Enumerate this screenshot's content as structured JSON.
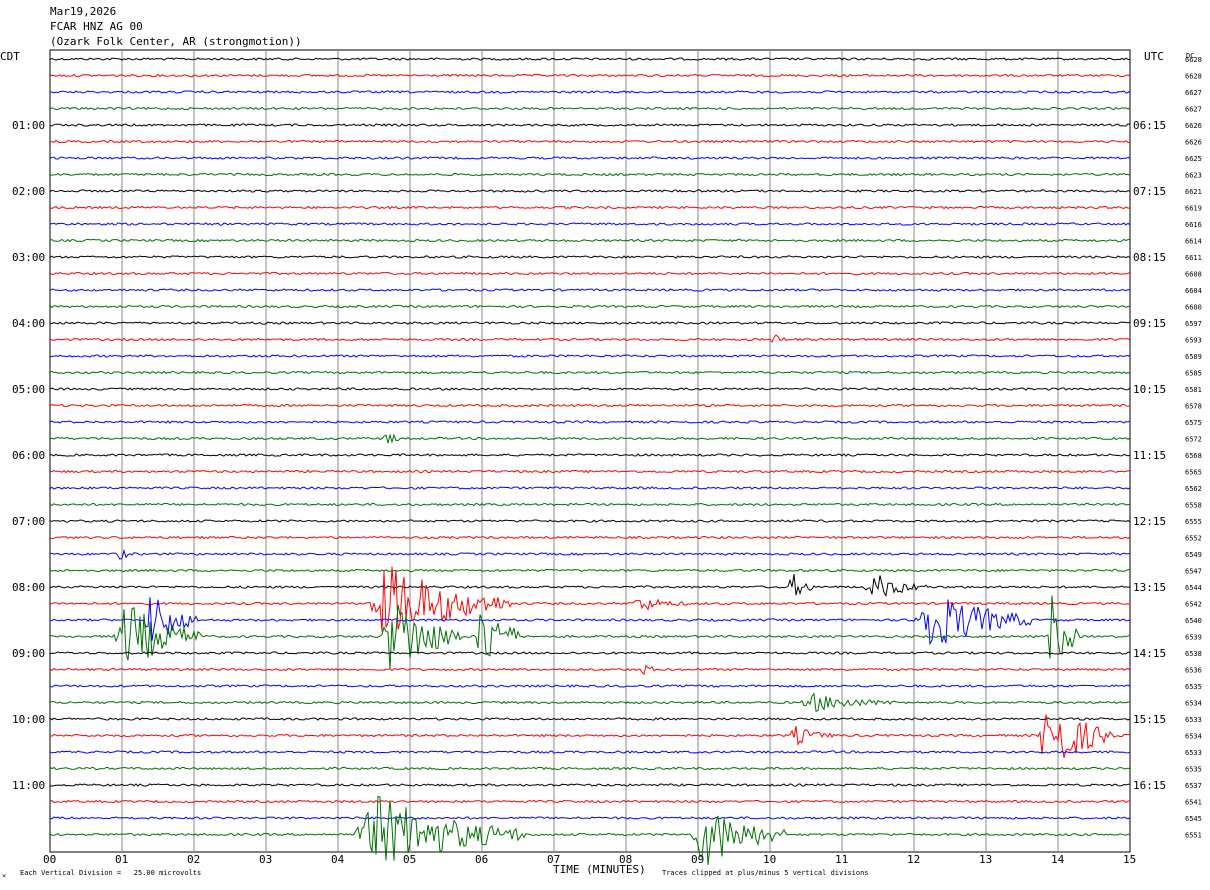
{
  "header": {
    "date": "Mar19,2026",
    "station": "FCAR HNZ AG 00",
    "location": "(Ozark Folk Center, AR (strongmotion))"
  },
  "footer": {
    "scale_note": "Each Vertical Division =   25.00 microvolts",
    "clip_note": "Traces clipped at plus/minus 5 vertical divisions"
  },
  "chart_data": {
    "type": "line",
    "title": "",
    "xlabel": "TIME (MINUTES)",
    "left_axis_label": "CDT",
    "right_axis_label": "UTC",
    "dc_label": "DC",
    "xlim": [
      0,
      15
    ],
    "x_ticks": [
      "00",
      "01",
      "02",
      "03",
      "04",
      "05",
      "06",
      "07",
      "08",
      "09",
      "10",
      "11",
      "12",
      "13",
      "14",
      "15"
    ],
    "grid": true,
    "trace_colors": [
      "#000000",
      "#ff0000",
      "#0000ff",
      "#007000"
    ],
    "cdt_labels": [
      "01:00",
      "02:00",
      "03:00",
      "04:00",
      "05:00",
      "06:00",
      "07:00",
      "08:00",
      "09:00",
      "10:00",
      "11:00"
    ],
    "utc_labels": [
      "06:15",
      "07:15",
      "08:15",
      "09:15",
      "10:15",
      "11:15",
      "12:15",
      "13:15",
      "14:15",
      "15:15",
      "16:15"
    ],
    "dc_values": [
      "6628",
      "6628",
      "6627",
      "6627",
      "6626",
      "6626",
      "6625",
      "6623",
      "6621",
      "6619",
      "6616",
      "6614",
      "6611",
      "6608",
      "6604",
      "6600",
      "6597",
      "6593",
      "6589",
      "6585",
      "6581",
      "6578",
      "6575",
      "6572",
      "6568",
      "6565",
      "6562",
      "6558",
      "6555",
      "6552",
      "6549",
      "6547",
      "6544",
      "6542",
      "6540",
      "6539",
      "6538",
      "6536",
      "6535",
      "6534",
      "6533",
      "6534",
      "6533",
      "6535",
      "6537",
      "6541",
      "6545",
      "6551"
    ],
    "events": [
      {
        "trace": 30,
        "minute": 0.92,
        "duration": 0.25,
        "amplitude": 0.5
      },
      {
        "trace": 35,
        "minute": 0.88,
        "duration": 1.25,
        "amplitude": 2.2
      },
      {
        "trace": 34,
        "minute": 1.3,
        "duration": 0.75,
        "amplitude": 1.9
      },
      {
        "trace": 32,
        "minute": 11.3,
        "duration": 0.9,
        "amplitude": 0.9
      },
      {
        "trace": 33,
        "minute": 4.4,
        "duration": 2.0,
        "amplitude": 2.5
      },
      {
        "trace": 35,
        "minute": 4.6,
        "duration": 1.1,
        "amplitude": 2.8
      },
      {
        "trace": 35,
        "minute": 5.9,
        "duration": 0.65,
        "amplitude": 2.4
      },
      {
        "trace": 34,
        "minute": 11.95,
        "duration": 1.7,
        "amplitude": 2.0
      },
      {
        "trace": 35,
        "minute": 13.85,
        "duration": 0.45,
        "amplitude": 2.6
      },
      {
        "trace": 41,
        "minute": 13.7,
        "duration": 1.1,
        "amplitude": 2.4
      },
      {
        "trace": 47,
        "minute": 4.2,
        "duration": 2.4,
        "amplitude": 2.4
      },
      {
        "trace": 47,
        "minute": 8.9,
        "duration": 1.3,
        "amplitude": 2.1
      },
      {
        "trace": 33,
        "minute": 8.05,
        "duration": 0.9,
        "amplitude": 0.5
      },
      {
        "trace": 37,
        "minute": 8.2,
        "duration": 0.3,
        "amplitude": 0.4
      },
      {
        "trace": 39,
        "minute": 10.4,
        "duration": 1.4,
        "amplitude": 0.6
      },
      {
        "trace": 41,
        "minute": 10.25,
        "duration": 0.7,
        "amplitude": 0.6
      },
      {
        "trace": 32,
        "minute": 10.25,
        "duration": 0.4,
        "amplitude": 0.9
      },
      {
        "trace": 17,
        "minute": 10.0,
        "duration": 0.3,
        "amplitude": 0.4
      },
      {
        "trace": 23,
        "minute": 4.6,
        "duration": 0.4,
        "amplitude": 0.4
      },
      {
        "trace": 1,
        "minute": 1.95,
        "duration": 0.05,
        "amplitude": 0.6
      },
      {
        "trace": 29,
        "minute": 2.75,
        "duration": 0.05,
        "amplitude": 0.6
      }
    ]
  }
}
